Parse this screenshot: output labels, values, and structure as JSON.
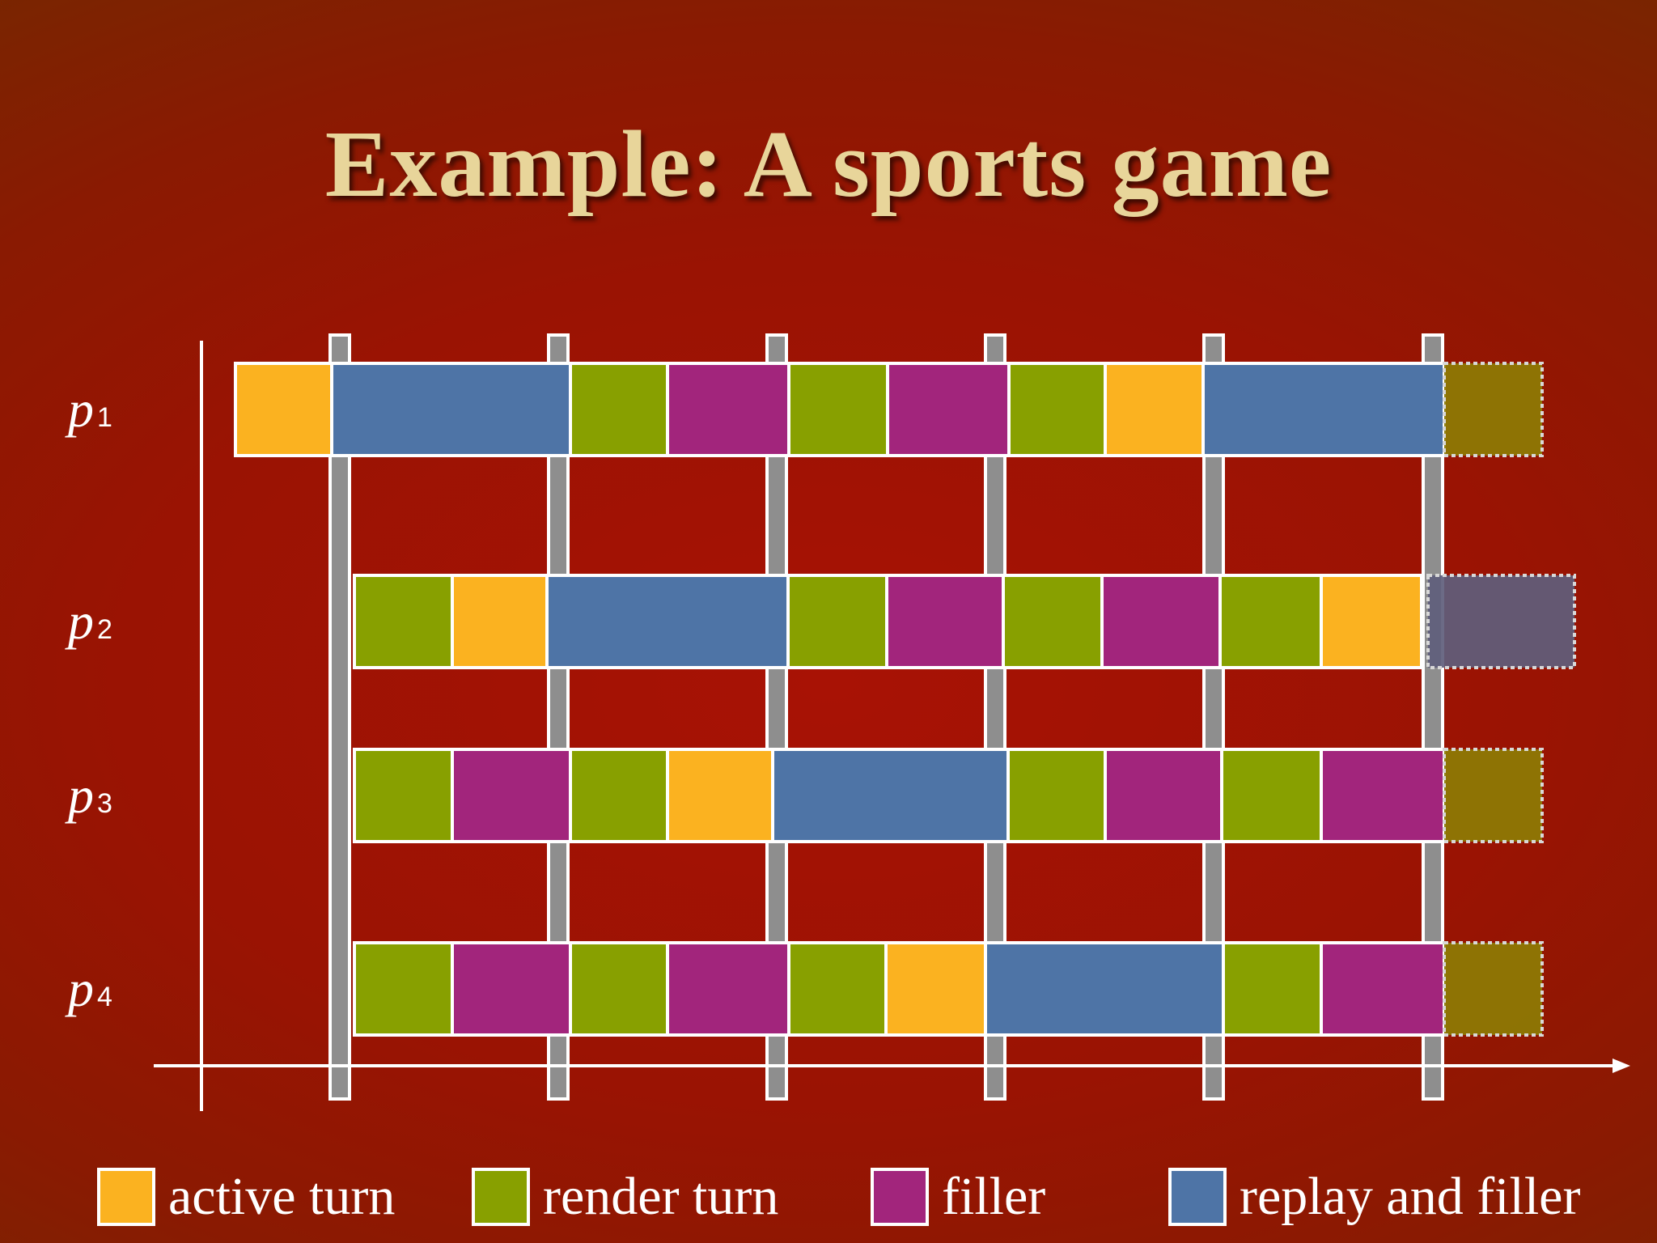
{
  "title": "Example: A sports game",
  "colors": {
    "active": "#fbb220",
    "render": "#88a000",
    "filler": "#a2257c",
    "replay": "#4e74a6",
    "ghost_olive": "#8d7c04",
    "ghost_slate": "#5f5e7c",
    "sync_bar": "#8e8e8e",
    "axis": "#ffffff"
  },
  "rows": [
    {
      "label": "p",
      "sub": "1",
      "segments": [
        "active",
        "replay",
        "render",
        "filler",
        "render",
        "filler",
        "render",
        "active",
        "replay"
      ],
      "ghost": "ghost_olive"
    },
    {
      "label": "p",
      "sub": "2",
      "segments": [
        "render",
        "active",
        "replay",
        "render",
        "filler",
        "render",
        "filler",
        "render",
        "active"
      ],
      "ghost": "ghost_slate"
    },
    {
      "label": "p",
      "sub": "3",
      "segments": [
        "render",
        "filler",
        "render",
        "active",
        "replay",
        "render",
        "filler",
        "render",
        "filler"
      ],
      "ghost": "ghost_olive"
    },
    {
      "label": "p",
      "sub": "4",
      "segments": [
        "render",
        "filler",
        "render",
        "filler",
        "render",
        "active",
        "replay",
        "render",
        "filler"
      ],
      "ghost": "ghost_olive"
    }
  ],
  "legend": [
    {
      "key": "active",
      "label": "active turn"
    },
    {
      "key": "render",
      "label": "render turn"
    },
    {
      "key": "filler",
      "label": "filler"
    },
    {
      "key": "replay",
      "label": "replay and filler"
    }
  ]
}
